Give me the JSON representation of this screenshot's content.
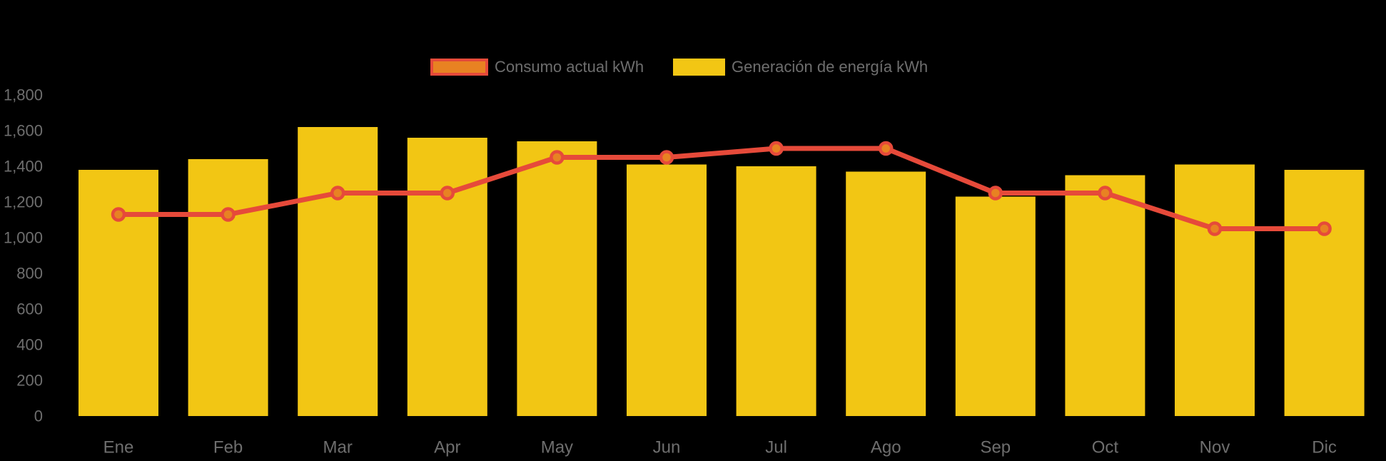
{
  "colors": {
    "background": "#000000",
    "bar_yellow": "#F2C614",
    "line_red": "#E64A3A",
    "marker_orange": "#E88222",
    "axis_text": "#6E6E6E",
    "legend_text": "#6E6E6E"
  },
  "legend": {
    "items": [
      {
        "label": "Consumo actual kWh",
        "swatch_fill": "#E88222",
        "swatch_border": "#E64A3A"
      },
      {
        "label": "Generación de energía kWh",
        "swatch_fill": "#F2C614",
        "swatch_border": "#F2C614"
      }
    ]
  },
  "chart_data": {
    "type": "combo-bar-line",
    "title": "",
    "xlabel": "",
    "ylabel": "",
    "categories": [
      "Ene",
      "Feb",
      "Mar",
      "Apr",
      "May",
      "Jun",
      "Jul",
      "Ago",
      "Sep",
      "Oct",
      "Nov",
      "Dic"
    ],
    "series": [
      {
        "name": "Consumo actual kWh",
        "type": "line",
        "color": "#E64A3A",
        "marker_fill": "#E88222",
        "values": [
          1130,
          1130,
          1250,
          1250,
          1450,
          1450,
          1500,
          1500,
          1250,
          1250,
          1050,
          1050
        ]
      },
      {
        "name": "Generación de energía kWh",
        "type": "bar",
        "color": "#F2C614",
        "values": [
          1380,
          1440,
          1620,
          1560,
          1540,
          1410,
          1400,
          1370,
          1230,
          1350,
          1410,
          1380
        ]
      }
    ],
    "y_axis": {
      "min": 0,
      "max": 1800,
      "tick_step": 200,
      "tick_labels": [
        "0",
        "200",
        "400",
        "600",
        "800",
        "1,000",
        "1,200",
        "1,400",
        "1,600",
        "1,800"
      ]
    },
    "grid": false,
    "legend_position": "top-center"
  }
}
